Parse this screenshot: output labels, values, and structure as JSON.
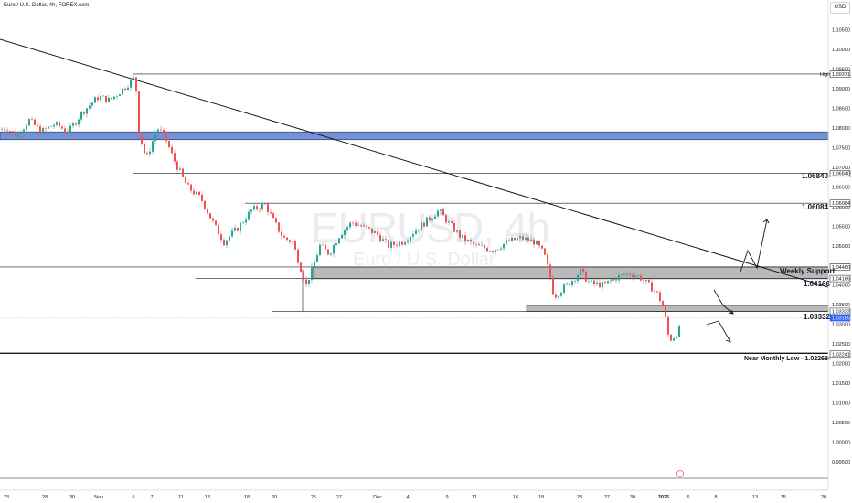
{
  "header": {
    "title": "Euro / U.S. Dollar, 4h, FOREX.com",
    "currency": "USD"
  },
  "watermark": {
    "symbol": "EURUSD, 4h",
    "name": "Euro / U.S. Dollar"
  },
  "chart_data": {
    "type": "candlestick",
    "ylim": [
      0.995,
      1.11
    ],
    "y_ticks": [
      "1.11000",
      "1.10500",
      "1.10000",
      "1.09500",
      "1.09000",
      "1.08500",
      "1.08000",
      "1.07500",
      "1.07000",
      "1.06500",
      "1.06000",
      "1.05500",
      "1.05000",
      "1.04500",
      "1.04000",
      "1.03500",
      "1.03000",
      "1.02500",
      "1.02000",
      "1.01500",
      "1.01000",
      "1.00500",
      "1.00000",
      "0.99500"
    ],
    "x_ticks": [
      "23",
      "28",
      "30",
      "Nov",
      "6",
      "7",
      "11",
      "13",
      "18",
      "20",
      "25",
      "27",
      "Dec",
      "4",
      "9",
      "11",
      "16",
      "18",
      "23",
      "27",
      "30",
      "2025",
      "6",
      "8",
      "13",
      "15",
      "20"
    ],
    "price_path": [
      [
        0,
        1.0795
      ],
      [
        8,
        1.08
      ],
      [
        18,
        1.078
      ],
      [
        32,
        1.082
      ],
      [
        45,
        1.079
      ],
      [
        60,
        1.081
      ],
      [
        75,
        1.079
      ],
      [
        90,
        1.084
      ],
      [
        108,
        1.088
      ],
      [
        120,
        1.087
      ],
      [
        135,
        1.09
      ],
      [
        148,
        1.093
      ],
      [
        152,
        1.079
      ],
      [
        160,
        1.072
      ],
      [
        172,
        1.08
      ],
      [
        180,
        1.078
      ],
      [
        190,
        1.072
      ],
      [
        205,
        1.065
      ],
      [
        220,
        1.062
      ],
      [
        235,
        1.055
      ],
      [
        245,
        1.051
      ],
      [
        260,
        1.0545
      ],
      [
        275,
        1.059
      ],
      [
        290,
        1.0605
      ],
      [
        300,
        1.056
      ],
      [
        310,
        1.052
      ],
      [
        320,
        1.051
      ],
      [
        328,
        1.045
      ],
      [
        335,
        1.04
      ],
      [
        342,
        1.0445
      ],
      [
        350,
        1.05
      ],
      [
        360,
        1.048
      ],
      [
        372,
        1.053
      ],
      [
        385,
        1.056
      ],
      [
        400,
        1.0545
      ],
      [
        412,
        1.053
      ],
      [
        425,
        1.05
      ],
      [
        440,
        1.051
      ],
      [
        460,
        1.055
      ],
      [
        480,
        1.059
      ],
      [
        490,
        1.056
      ],
      [
        505,
        1.052
      ],
      [
        520,
        1.05
      ],
      [
        540,
        1.049
      ],
      [
        555,
        1.051
      ],
      [
        570,
        1.052
      ],
      [
        585,
        1.051
      ],
      [
        595,
        1.048
      ],
      [
        602,
        1.042
      ],
      [
        606,
        1.037
      ],
      [
        615,
        1.039
      ],
      [
        625,
        1.041
      ],
      [
        635,
        1.0435
      ],
      [
        645,
        1.0405
      ],
      [
        660,
        1.04
      ],
      [
        675,
        1.042
      ],
      [
        690,
        1.043
      ],
      [
        700,
        1.042
      ],
      [
        712,
        1.0395
      ],
      [
        720,
        1.0375
      ],
      [
        726,
        1.034
      ],
      [
        732,
        1.026
      ],
      [
        738,
        1.027
      ],
      [
        745,
        1.0295
      ]
    ],
    "levels": [
      {
        "label": "High",
        "value": 1.09371
      },
      {
        "label": "1.06840",
        "value": 1.0684
      },
      {
        "label": "1.06084",
        "value": 1.06084
      },
      {
        "label": "Weekly Support",
        "value": 1.0446
      },
      {
        "label": "1.04166",
        "value": 1.04166
      },
      {
        "label": "1.03332",
        "value": 1.03332
      },
      {
        "label": "Near Monthly Low - 1.02263",
        "value": 1.02263
      },
      {
        "label": "Low",
        "value": 1.02241
      }
    ],
    "zones": [
      {
        "from": 1.079,
        "to": 1.077
      },
      {
        "from": 1.0446,
        "to": 1.0416
      },
      {
        "from": 1.0348,
        "to": 1.0333
      }
    ],
    "current_price": "1.03165"
  },
  "annotations": {
    "l_06840": "1.06840",
    "l_06084": "1.06084",
    "weekly": "Weekly Support",
    "l_04166": "1.04166",
    "l_03332": "1.03332",
    "monthly": "Near Monthly Low - 1.02263"
  },
  "price_tags": {
    "high_label": "High",
    "high": "1.09371",
    "t_06840": "1.06840",
    "t_06084": "1.06084",
    "t_04460": "1.04460",
    "t_04166": "1.04166",
    "t_03332": "1.03332",
    "current": "1.03165",
    "low": "1.02241",
    "low_label": "Low"
  },
  "colors": {
    "up": "#26a69a",
    "down": "#ef5350",
    "zone_blue": "#5b7fd6",
    "zone_grey": "#a8a8a8"
  }
}
